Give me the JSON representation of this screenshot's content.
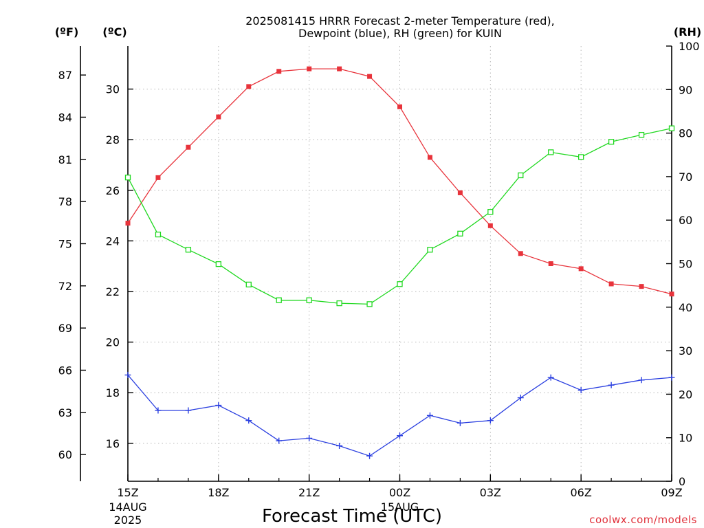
{
  "chart_data": {
    "type": "line",
    "title_lines": [
      "2025081415 HRRR Forecast 2-meter Temperature (red),",
      "Dewpoint (blue), RH (green) for KUIN"
    ],
    "xlabel": "Forecast Time (UTC)",
    "credit": "coolwx.com/models",
    "units": {
      "fahrenheit": "(ºF)",
      "celsius": "(ºC)",
      "rh": "(RH)"
    },
    "x_hours": [
      0,
      1,
      2,
      3,
      4,
      5,
      6,
      7,
      8,
      9,
      10,
      11,
      12,
      13,
      14,
      15,
      16,
      17,
      18
    ],
    "x_ticks": [
      {
        "hour": 0,
        "label": "15Z",
        "sub": [
          "14AUG",
          "2025"
        ]
      },
      {
        "hour": 3,
        "label": "18Z",
        "sub": []
      },
      {
        "hour": 6,
        "label": "21Z",
        "sub": []
      },
      {
        "hour": 9,
        "label": "00Z",
        "sub": [
          "15AUG"
        ]
      },
      {
        "hour": 12,
        "label": "03Z",
        "sub": []
      },
      {
        "hour": 15,
        "label": "06Z",
        "sub": []
      },
      {
        "hour": 18,
        "label": "09Z",
        "sub": []
      }
    ],
    "celsius_axis": {
      "ylim": [
        14.5,
        31.7
      ],
      "ticks": [
        16,
        18,
        20,
        22,
        24,
        26,
        28,
        30
      ]
    },
    "fahrenheit_axis": {
      "ticks": [
        60,
        63,
        66,
        69,
        72,
        75,
        78,
        81,
        84,
        87
      ]
    },
    "rh_axis": {
      "ylim": [
        0,
        100
      ],
      "ticks": [
        0,
        10,
        20,
        30,
        40,
        50,
        60,
        70,
        80,
        90,
        100
      ]
    },
    "series": [
      {
        "name": "Temperature",
        "axis": "celsius",
        "color": "#e8333b",
        "marker": "filled-square",
        "values": [
          24.7,
          26.5,
          27.7,
          28.9,
          30.1,
          30.7,
          30.8,
          30.8,
          30.5,
          29.3,
          27.3,
          25.9,
          24.6,
          23.5,
          23.1,
          22.9,
          22.3,
          22.2,
          21.9
        ]
      },
      {
        "name": "Dewpoint",
        "axis": "celsius",
        "color": "#2a3fe0",
        "marker": "plus",
        "values": [
          18.7,
          17.3,
          17.3,
          17.5,
          16.9,
          16.1,
          16.2,
          15.9,
          15.5,
          16.3,
          17.1,
          16.8,
          16.9,
          17.8,
          18.6,
          18.1,
          18.3,
          18.5,
          18.6
        ]
      },
      {
        "name": "RH",
        "axis": "rh",
        "color": "#1fd81f",
        "marker": "open-square",
        "values": [
          69.8,
          56.7,
          53.2,
          49.9,
          45.2,
          41.6,
          41.6,
          40.9,
          40.7,
          45.3,
          53.2,
          56.9,
          61.9,
          70.3,
          75.6,
          74.5,
          78.0,
          79.6,
          81.1
        ]
      }
    ]
  }
}
